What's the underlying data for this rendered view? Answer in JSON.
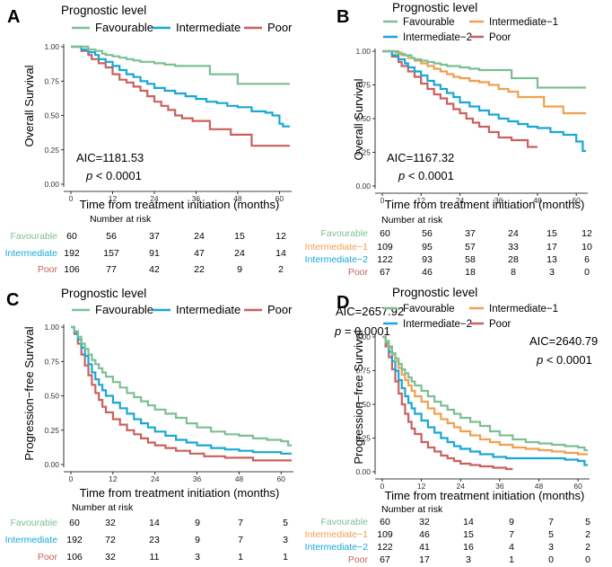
{
  "colors": {
    "favourable": "#7dbf94",
    "intermediate": "#1aa7d4",
    "poor": "#c9615f",
    "intermediate1": "#f0a050",
    "intermediate2": "#1aa7d4"
  },
  "chart_data": [
    {
      "panel": "A",
      "type": "line",
      "step": true,
      "legend_title": "Prognostic level",
      "ylabel": "Overall Survival",
      "xlabel": "Time from treatment initiation (months)",
      "xticks": [
        "0",
        "12",
        "24",
        "36",
        "48",
        "60"
      ],
      "yticks": [
        "0.00",
        "0.25",
        "0.50",
        "0.75",
        "1.00"
      ],
      "xlim": [
        0,
        63
      ],
      "ylim": [
        0,
        1
      ],
      "aic": "AIC=1181.53",
      "p_label": "p",
      "p_value": "< 0.0001",
      "risk_title": "Number at risk",
      "risk_times": [
        0,
        12,
        24,
        36,
        48,
        60
      ],
      "series": [
        {
          "name": "Favourable",
          "color_key": "favourable",
          "risk": [
            "60",
            "56",
            "37",
            "24",
            "15",
            "12"
          ],
          "x": [
            0,
            5,
            7,
            9,
            10,
            12,
            14,
            16,
            18,
            20,
            22,
            24,
            27,
            30,
            33,
            36,
            40,
            44,
            48,
            63
          ],
          "y": [
            1,
            0.98,
            0.97,
            0.95,
            0.94,
            0.93,
            0.92,
            0.91,
            0.9,
            0.89,
            0.89,
            0.88,
            0.87,
            0.86,
            0.86,
            0.86,
            0.8,
            0.8,
            0.73,
            0.73
          ]
        },
        {
          "name": "Intermediate",
          "color_key": "intermediate",
          "risk": [
            "192",
            "157",
            "91",
            "47",
            "24",
            "14"
          ],
          "x": [
            0,
            3,
            5,
            7,
            8,
            10,
            12,
            14,
            16,
            18,
            20,
            22,
            24,
            27,
            30,
            33,
            36,
            39,
            42,
            45,
            48,
            52,
            56,
            58,
            60,
            61,
            63
          ],
          "y": [
            1,
            0.98,
            0.96,
            0.94,
            0.91,
            0.89,
            0.86,
            0.83,
            0.8,
            0.78,
            0.75,
            0.73,
            0.7,
            0.68,
            0.66,
            0.64,
            0.62,
            0.6,
            0.59,
            0.57,
            0.56,
            0.53,
            0.52,
            0.5,
            0.44,
            0.42,
            0.42
          ]
        },
        {
          "name": "Poor",
          "color_key": "poor",
          "risk": [
            "106",
            "77",
            "42",
            "22",
            "9",
            "2"
          ],
          "x": [
            0,
            3,
            5,
            6,
            8,
            10,
            12,
            14,
            16,
            18,
            20,
            22,
            24,
            26,
            28,
            30,
            32,
            35,
            40,
            46,
            49,
            52,
            63
          ],
          "y": [
            1,
            0.97,
            0.94,
            0.91,
            0.88,
            0.85,
            0.8,
            0.76,
            0.74,
            0.71,
            0.68,
            0.64,
            0.6,
            0.57,
            0.54,
            0.5,
            0.48,
            0.46,
            0.4,
            0.36,
            0.36,
            0.28,
            0.28
          ]
        }
      ]
    },
    {
      "panel": "B",
      "type": "line",
      "step": true,
      "legend_title": "Prognostic level",
      "ylabel": "Overall Survival",
      "xlabel": "Time from treatment initiation (months)",
      "xticks": [
        "0",
        "12",
        "24",
        "36",
        "48",
        "60"
      ],
      "yticks": [
        "0.00",
        "0.25",
        "0.50",
        "0.75",
        "1.00"
      ],
      "xlim": [
        0,
        63
      ],
      "ylim": [
        0,
        1
      ],
      "aic": "AIC=1167.32",
      "p_label": "p",
      "p_value": "< 0.0001",
      "risk_title": "Number at risk",
      "risk_times": [
        0,
        12,
        24,
        36,
        48,
        60
      ],
      "series": [
        {
          "name": "Favourable",
          "color_key": "favourable",
          "risk": [
            "60",
            "56",
            "37",
            "24",
            "15",
            "12"
          ],
          "x": [
            0,
            5,
            7,
            9,
            10,
            12,
            14,
            16,
            18,
            20,
            22,
            24,
            27,
            30,
            33,
            36,
            40,
            44,
            48,
            63
          ],
          "y": [
            1,
            0.98,
            0.97,
            0.95,
            0.94,
            0.93,
            0.92,
            0.91,
            0.9,
            0.89,
            0.89,
            0.88,
            0.87,
            0.86,
            0.86,
            0.86,
            0.8,
            0.8,
            0.73,
            0.73
          ]
        },
        {
          "name": "Intermediate−1",
          "color_key": "intermediate1",
          "risk": [
            "109",
            "95",
            "57",
            "33",
            "17",
            "10"
          ],
          "x": [
            0,
            4,
            6,
            8,
            10,
            12,
            14,
            16,
            18,
            20,
            22,
            24,
            27,
            30,
            33,
            36,
            39,
            42,
            46,
            50,
            56,
            63
          ],
          "y": [
            1,
            0.99,
            0.97,
            0.95,
            0.93,
            0.91,
            0.89,
            0.87,
            0.85,
            0.83,
            0.81,
            0.8,
            0.78,
            0.77,
            0.75,
            0.72,
            0.7,
            0.66,
            0.66,
            0.59,
            0.54,
            0.54
          ]
        },
        {
          "name": "Intermediate−2",
          "color_key": "intermediate2",
          "risk": [
            "122",
            "93",
            "58",
            "28",
            "13",
            "6"
          ],
          "x": [
            0,
            3,
            5,
            7,
            8,
            10,
            12,
            14,
            16,
            18,
            20,
            22,
            24,
            27,
            30,
            33,
            36,
            39,
            42,
            45,
            48,
            52,
            56,
            60,
            62,
            63
          ],
          "y": [
            1,
            0.97,
            0.94,
            0.91,
            0.88,
            0.85,
            0.82,
            0.78,
            0.75,
            0.72,
            0.69,
            0.66,
            0.62,
            0.59,
            0.56,
            0.53,
            0.5,
            0.48,
            0.46,
            0.44,
            0.43,
            0.4,
            0.38,
            0.33,
            0.26,
            0.26
          ]
        },
        {
          "name": "Poor",
          "color_key": "poor",
          "risk": [
            "67",
            "46",
            "18",
            "8",
            "3",
            "0"
          ],
          "x": [
            0,
            3,
            5,
            6,
            8,
            10,
            12,
            14,
            16,
            18,
            20,
            22,
            24,
            26,
            28,
            30,
            33,
            36,
            40,
            45,
            48
          ],
          "y": [
            1,
            0.96,
            0.92,
            0.89,
            0.85,
            0.81,
            0.76,
            0.72,
            0.68,
            0.65,
            0.61,
            0.57,
            0.54,
            0.5,
            0.47,
            0.44,
            0.4,
            0.36,
            0.34,
            0.29,
            0.29
          ]
        }
      ]
    },
    {
      "panel": "C",
      "type": "line",
      "step": true,
      "legend_title": "Prognostic level",
      "ylabel": "Progression−free Survival",
      "xlabel": "Time from treatment initiation (months)",
      "xticks": [
        "0",
        "12",
        "24",
        "36",
        "48",
        "60"
      ],
      "yticks": [
        "0.00",
        "0.25",
        "0.50",
        "0.75",
        "1.00"
      ],
      "xlim": [
        0,
        63
      ],
      "ylim": [
        0,
        1
      ],
      "aic": "AIC=2657.92",
      "p_label": "p",
      "p_value": "= 0.0001",
      "risk_title": "Number at risk",
      "risk_times": [
        0,
        12,
        24,
        36,
        48,
        60
      ],
      "series": [
        {
          "name": "Favourable",
          "color_key": "favourable",
          "risk": [
            "60",
            "32",
            "14",
            "9",
            "7",
            "5"
          ],
          "x": [
            0,
            1,
            2,
            3,
            4,
            5,
            6,
            7,
            8,
            9,
            10,
            12,
            14,
            16,
            18,
            20,
            22,
            24,
            27,
            30,
            33,
            36,
            40,
            44,
            48,
            52,
            56,
            60,
            62,
            63
          ],
          "y": [
            1,
            0.97,
            0.93,
            0.88,
            0.84,
            0.8,
            0.76,
            0.73,
            0.7,
            0.67,
            0.64,
            0.6,
            0.56,
            0.52,
            0.49,
            0.46,
            0.43,
            0.4,
            0.37,
            0.34,
            0.3,
            0.27,
            0.24,
            0.22,
            0.21,
            0.19,
            0.18,
            0.17,
            0.14,
            0.14
          ]
        },
        {
          "name": "Intermediate",
          "color_key": "intermediate",
          "risk": [
            "192",
            "72",
            "23",
            "9",
            "7",
            "3"
          ],
          "x": [
            0,
            1,
            2,
            3,
            4,
            5,
            6,
            7,
            8,
            9,
            10,
            12,
            14,
            16,
            18,
            20,
            22,
            24,
            27,
            30,
            33,
            36,
            40,
            44,
            48,
            52,
            56,
            60,
            63
          ],
          "y": [
            1,
            0.96,
            0.91,
            0.85,
            0.79,
            0.73,
            0.67,
            0.62,
            0.58,
            0.54,
            0.5,
            0.45,
            0.41,
            0.37,
            0.33,
            0.3,
            0.27,
            0.24,
            0.21,
            0.18,
            0.16,
            0.14,
            0.12,
            0.11,
            0.1,
            0.09,
            0.09,
            0.08,
            0.08
          ]
        },
        {
          "name": "Poor",
          "color_key": "poor",
          "risk": [
            "106",
            "32",
            "11",
            "3",
            "1",
            "1"
          ],
          "x": [
            0,
            1,
            2,
            3,
            4,
            5,
            6,
            7,
            8,
            9,
            10,
            12,
            14,
            16,
            18,
            20,
            22,
            24,
            27,
            30,
            34,
            38,
            44,
            52,
            63
          ],
          "y": [
            1,
            0.95,
            0.88,
            0.8,
            0.72,
            0.65,
            0.58,
            0.52,
            0.47,
            0.42,
            0.38,
            0.33,
            0.29,
            0.25,
            0.22,
            0.19,
            0.16,
            0.14,
            0.12,
            0.1,
            0.08,
            0.06,
            0.05,
            0.03,
            0.03
          ]
        }
      ]
    },
    {
      "panel": "D",
      "type": "line",
      "step": true,
      "legend_title": "Prognostic level",
      "ylabel": "Progression−free Survival",
      "xlabel": "Time from treatment initiation (months)",
      "xticks": [
        "0",
        "12",
        "24",
        "36",
        "48",
        "60"
      ],
      "yticks": [
        "0.00",
        "0.25",
        "0.50",
        "0.75",
        "1.00"
      ],
      "xlim": [
        0,
        63
      ],
      "ylim": [
        0,
        1
      ],
      "aic": "AIC=2640.79",
      "p_label": "p",
      "p_value": "< 0.0001",
      "risk_title": "Number at risk",
      "risk_times": [
        0,
        12,
        24,
        36,
        48,
        60
      ],
      "series": [
        {
          "name": "Favourable",
          "color_key": "favourable",
          "risk": [
            "60",
            "32",
            "14",
            "9",
            "7",
            "5"
          ],
          "x": [
            0,
            1,
            2,
            3,
            4,
            5,
            6,
            7,
            8,
            9,
            10,
            12,
            14,
            16,
            18,
            20,
            22,
            24,
            27,
            30,
            33,
            36,
            40,
            44,
            48,
            52,
            56,
            60,
            62,
            63
          ],
          "y": [
            1,
            0.97,
            0.93,
            0.88,
            0.84,
            0.8,
            0.76,
            0.73,
            0.7,
            0.67,
            0.64,
            0.6,
            0.56,
            0.52,
            0.49,
            0.46,
            0.43,
            0.4,
            0.37,
            0.34,
            0.3,
            0.27,
            0.24,
            0.22,
            0.21,
            0.2,
            0.19,
            0.18,
            0.16,
            0.16
          ]
        },
        {
          "name": "Intermediate−1",
          "color_key": "intermediate1",
          "risk": [
            "109",
            "46",
            "15",
            "7",
            "5",
            "2"
          ],
          "x": [
            0,
            1,
            2,
            3,
            4,
            5,
            6,
            7,
            8,
            9,
            10,
            12,
            14,
            16,
            18,
            20,
            22,
            24,
            27,
            30,
            33,
            36,
            40,
            44,
            48,
            52,
            56,
            60,
            63
          ],
          "y": [
            1,
            0.96,
            0.92,
            0.87,
            0.82,
            0.77,
            0.72,
            0.68,
            0.64,
            0.6,
            0.56,
            0.52,
            0.47,
            0.43,
            0.39,
            0.36,
            0.33,
            0.3,
            0.27,
            0.24,
            0.22,
            0.2,
            0.18,
            0.17,
            0.16,
            0.15,
            0.14,
            0.13,
            0.13
          ]
        },
        {
          "name": "Intermediate−2",
          "color_key": "intermediate2",
          "risk": [
            "122",
            "41",
            "16",
            "4",
            "3",
            "2"
          ],
          "x": [
            0,
            1,
            2,
            3,
            4,
            5,
            6,
            7,
            8,
            9,
            10,
            12,
            14,
            16,
            18,
            20,
            22,
            24,
            27,
            30,
            34,
            38,
            44,
            50,
            56,
            60,
            62,
            63
          ],
          "y": [
            1,
            0.95,
            0.89,
            0.82,
            0.75,
            0.68,
            0.62,
            0.56,
            0.51,
            0.47,
            0.43,
            0.38,
            0.33,
            0.29,
            0.25,
            0.22,
            0.19,
            0.17,
            0.15,
            0.13,
            0.11,
            0.1,
            0.1,
            0.1,
            0.09,
            0.08,
            0.05,
            0.05
          ]
        },
        {
          "name": "Poor",
          "color_key": "poor",
          "risk": [
            "67",
            "17",
            "3",
            "1",
            "0",
            "0"
          ],
          "x": [
            0,
            1,
            2,
            3,
            4,
            5,
            6,
            7,
            8,
            9,
            10,
            12,
            14,
            16,
            18,
            20,
            22,
            24,
            27,
            30,
            34,
            38,
            40
          ],
          "y": [
            1,
            0.93,
            0.85,
            0.76,
            0.67,
            0.58,
            0.5,
            0.43,
            0.37,
            0.32,
            0.28,
            0.22,
            0.18,
            0.15,
            0.12,
            0.1,
            0.08,
            0.06,
            0.05,
            0.04,
            0.03,
            0.02,
            0.02
          ]
        }
      ]
    }
  ]
}
